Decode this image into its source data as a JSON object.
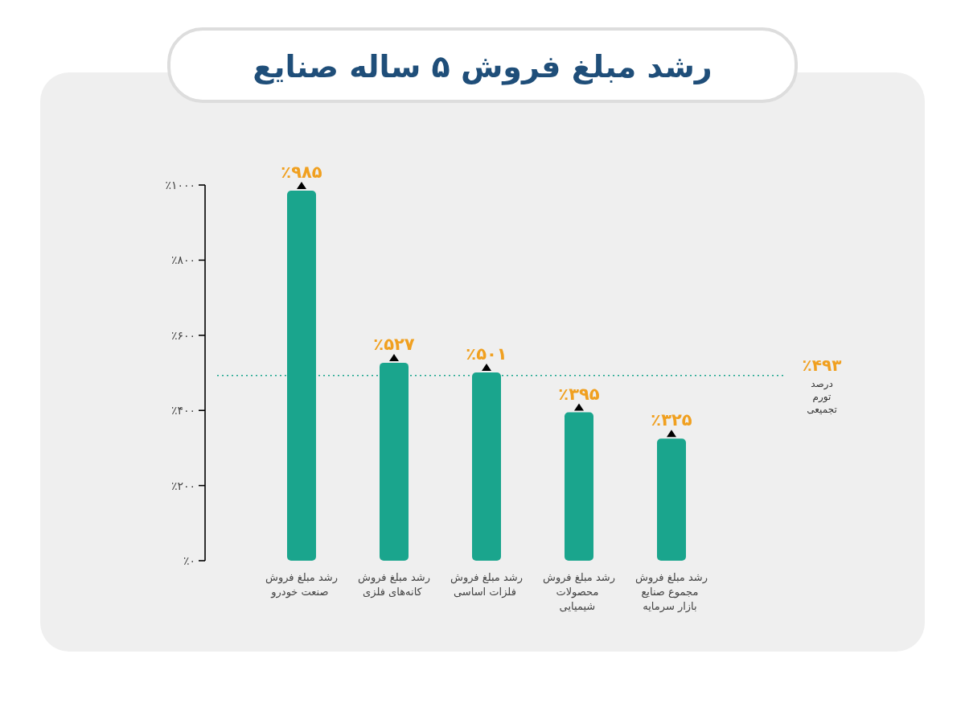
{
  "chart_data": {
    "type": "bar",
    "title": "رشد مبلغ فروش ۵ ساله صنایع",
    "categories": [
      "رشد مبلغ فروش صنعت خودرو",
      "رشد مبلغ فروش کانه‌های فلزی",
      "رشد مبلغ فروش فلزات اساسی",
      "رشد مبلغ فروش محصولات شیمیایی",
      "رشد مبلغ فروش مجموع صنایع بازار سرمایه"
    ],
    "values": [
      985,
      527,
      501,
      395,
      325
    ],
    "color": "#1aa58d",
    "value_labels": [
      "٪۹۸۵",
      "٪۵۲۷",
      "٪۵۰۱",
      "٪۳۹۵",
      "٪۳۲۵"
    ],
    "ylim": [
      0,
      1000
    ],
    "yticks": [
      {
        "value": 0,
        "label": "٪۰"
      },
      {
        "value": 200,
        "label": "٪۲۰۰"
      },
      {
        "value": 400,
        "label": "٪۴۰۰"
      },
      {
        "value": 600,
        "label": "٪۶۰۰"
      },
      {
        "value": 800,
        "label": "٪۸۰۰"
      },
      {
        "value": 1000,
        "label": "٪۱۰۰۰"
      }
    ],
    "ref_lines": [
      {
        "axis": "y",
        "value": 493,
        "label": "٪۴۹۳ درصد تورم تجمیعی",
        "color": "#1aa58d",
        "line_style": "dotted"
      }
    ]
  }
}
